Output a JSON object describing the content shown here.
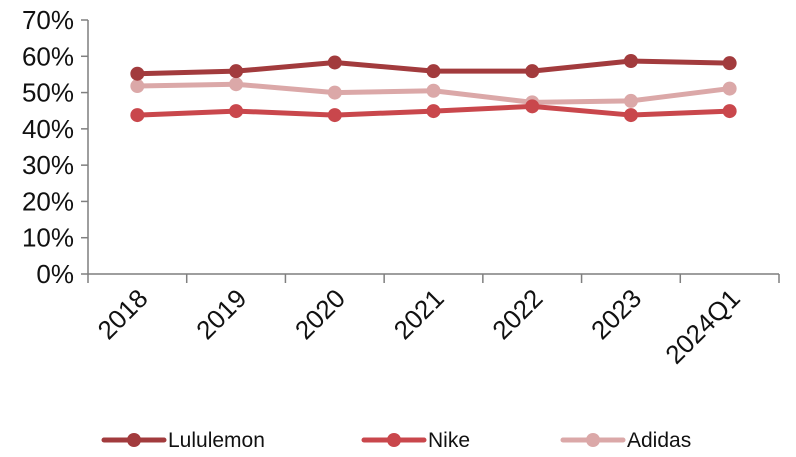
{
  "chart_data": {
    "type": "line",
    "title": "",
    "xlabel": "",
    "ylabel": "",
    "ylim": [
      0,
      70
    ],
    "y_ticks": [
      "0%",
      "10%",
      "20%",
      "30%",
      "40%",
      "50%",
      "60%",
      "70%"
    ],
    "y_tick_values": [
      0,
      10,
      20,
      30,
      40,
      50,
      60,
      70
    ],
    "categories": [
      "2018",
      "2019",
      "2020",
      "2021",
      "2022",
      "2023",
      "2024Q1"
    ],
    "grid": false,
    "legend_position": "bottom",
    "series": [
      {
        "name": "Lululemon",
        "color": "#a23b3d",
        "values": [
          55.2,
          55.9,
          58.3,
          55.9,
          55.9,
          58.7,
          58.1
        ]
      },
      {
        "name": "Nike",
        "color": "#c9474c",
        "values": [
          43.8,
          44.9,
          43.8,
          44.9,
          46.2,
          43.8,
          44.9
        ]
      },
      {
        "name": "Adidas",
        "color": "#dba8a8",
        "values": [
          51.8,
          52.3,
          50.0,
          50.5,
          47.3,
          47.7,
          51.1
        ]
      }
    ]
  }
}
